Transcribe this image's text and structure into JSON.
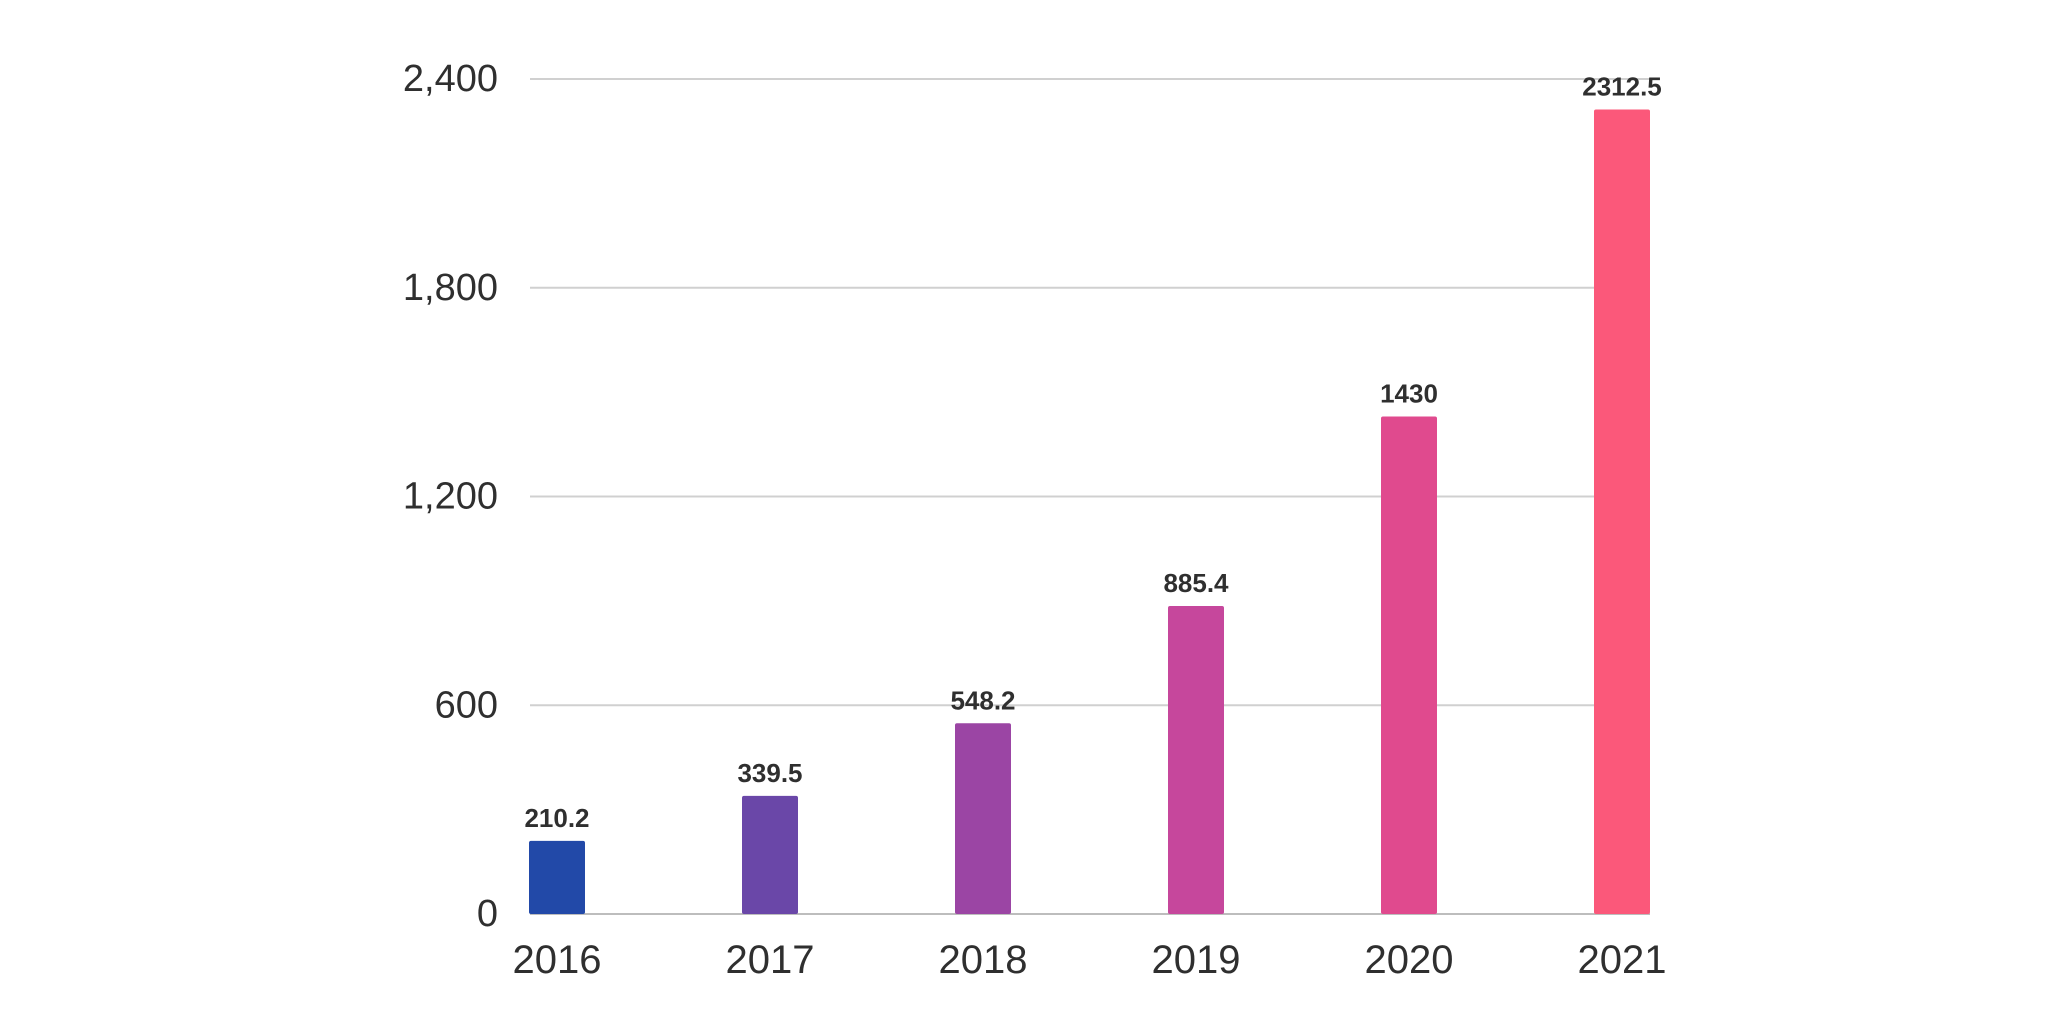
{
  "chart_data": {
    "type": "bar",
    "title": "",
    "xlabel": "",
    "ylabel": "",
    "categories": [
      "2016",
      "2017",
      "2018",
      "2019",
      "2020",
      "2021"
    ],
    "values": [
      210.2,
      339.5,
      548.2,
      885.4,
      1430,
      2312.5
    ],
    "data_labels": [
      "210.2",
      "339.5",
      "548.2",
      "885.4",
      "1430",
      "2312.5"
    ],
    "ylim": [
      0,
      2400
    ],
    "y_ticks": [
      0,
      600,
      1200,
      1800,
      2400
    ],
    "y_tick_labels": [
      "0",
      "600",
      "1,200",
      "1,800",
      "2,400"
    ],
    "grid": true,
    "legend": "none",
    "bar_colors": [
      "#2249a8",
      "#6a47a8",
      "#9b45a4",
      "#c6479c",
      "#e04a8e",
      "#fb587a"
    ]
  }
}
